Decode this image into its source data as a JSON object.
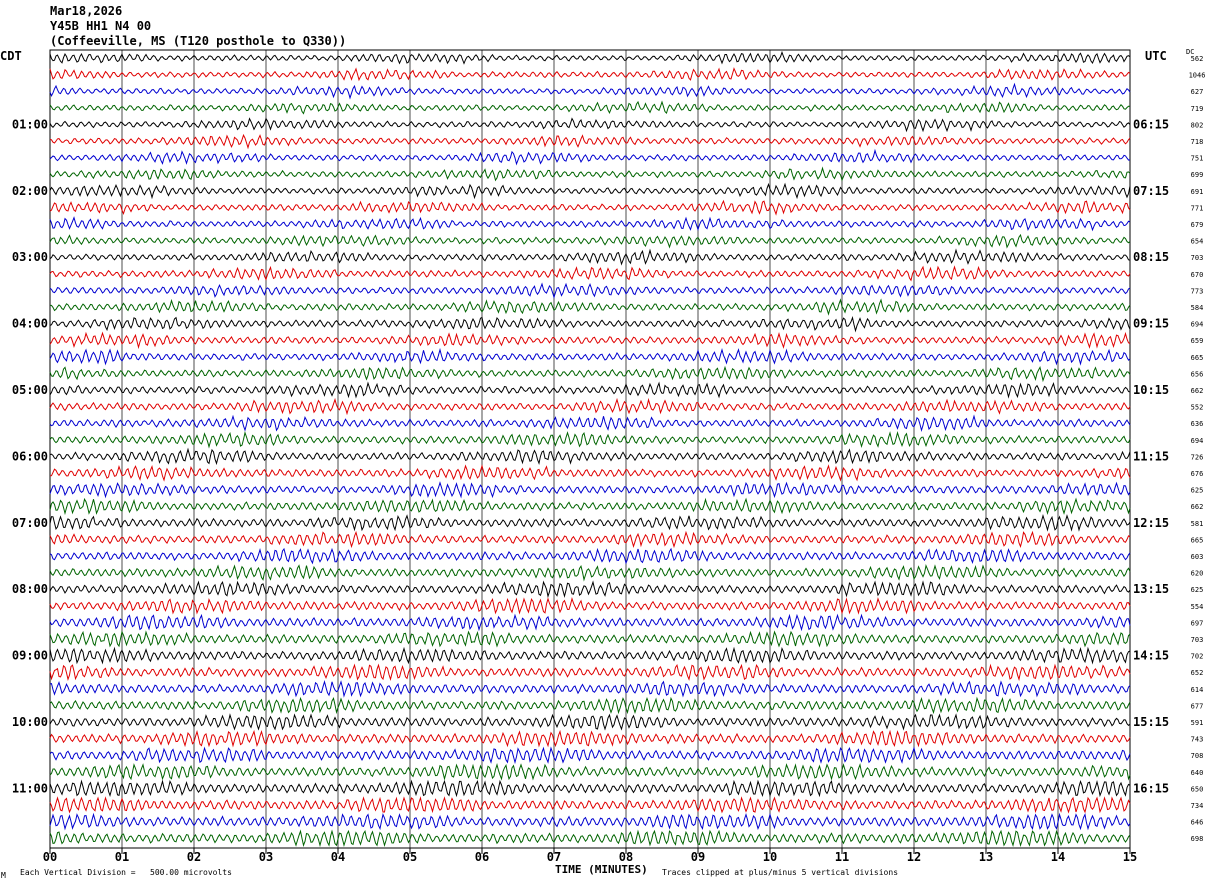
{
  "header": {
    "date": "Mar18,2026",
    "station": "Y45B HH1 N4 00",
    "location": "(Coffeeville, MS (T120 posthole to Q330))"
  },
  "labels": {
    "left_tz": "CDT",
    "right_tz": "UTC",
    "dc_label": "DC"
  },
  "footer": {
    "vertical_division": "Each Vertical Division =   500.00 microvolts",
    "clip_note": "Traces clipped at plus/minus 5 vertical divisions",
    "corner_mark": "M"
  },
  "colors": {
    "trace_cycle": [
      "#000000",
      "#e00000",
      "#0000d0",
      "#006400"
    ],
    "grid": "#000000"
  },
  "chart_data": {
    "type": "line",
    "title": "",
    "xlabel": "TIME (MINUTES)",
    "ylabel": "",
    "xlim": [
      0,
      15
    ],
    "x_ticks": [
      "00",
      "01",
      "02",
      "03",
      "04",
      "05",
      "06",
      "07",
      "08",
      "09",
      "10",
      "11",
      "12",
      "13",
      "14",
      "15"
    ],
    "hour_labels_left": [
      "01:00",
      "02:00",
      "03:00",
      "04:00",
      "05:00",
      "06:00",
      "07:00",
      "08:00",
      "09:00",
      "10:00",
      "11:00"
    ],
    "hour_labels_right": [
      "06:15",
      "07:15",
      "08:15",
      "09:15",
      "10:15",
      "11:15",
      "12:15",
      "13:15",
      "14:15",
      "15:15",
      "16:15"
    ],
    "trace_dc": [
      562,
      1046,
      627,
      719,
      802,
      718,
      751,
      699,
      691,
      771,
      679,
      654,
      703,
      670,
      773,
      584,
      694,
      659,
      665,
      656,
      662,
      552,
      636,
      694,
      726,
      676,
      625,
      662,
      581,
      665,
      603,
      620,
      625,
      554,
      697,
      703,
      702,
      652,
      614,
      677,
      591,
      743,
      708,
      640,
      650,
      734,
      646,
      698
    ],
    "trace_count": 48,
    "traces_per_hour": 4,
    "trace_minutes": 15,
    "grid": true
  }
}
